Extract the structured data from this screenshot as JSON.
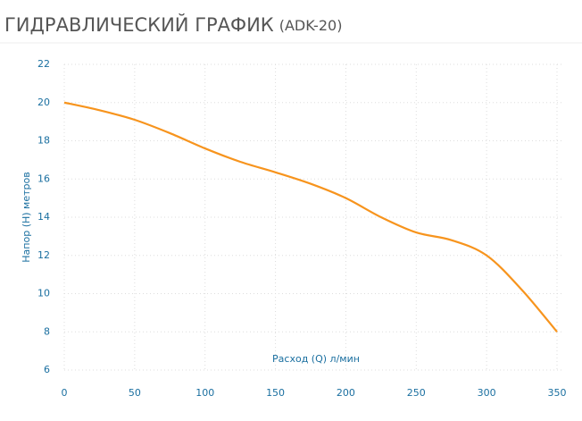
{
  "chart_data": {
    "type": "line",
    "title": "ГИДРАВЛИЧЕСКИЙ ГРАФИК",
    "subtitle": "(ADK-20)",
    "x_label": "Расход (Q) л/мин",
    "y_label": "Напор (H) метров",
    "x": [
      0,
      25,
      50,
      75,
      100,
      125,
      150,
      175,
      200,
      225,
      250,
      275,
      300,
      325,
      350
    ],
    "series": [
      {
        "color": "#f7941d",
        "values": [
          20,
          19.6,
          19.1,
          18.4,
          17.6,
          16.9,
          16.35,
          15.75,
          15.0,
          14.0,
          13.2,
          12.8,
          12.0,
          10.2,
          8.0
        ]
      }
    ],
    "xlim": [
      0,
      350
    ],
    "xticks": [
      0,
      50,
      100,
      150,
      200,
      250,
      300,
      350
    ],
    "ylim": [
      6,
      22
    ],
    "yticks": [
      6,
      8,
      10,
      12,
      14,
      16,
      18,
      20,
      22
    ],
    "grid": true
  }
}
